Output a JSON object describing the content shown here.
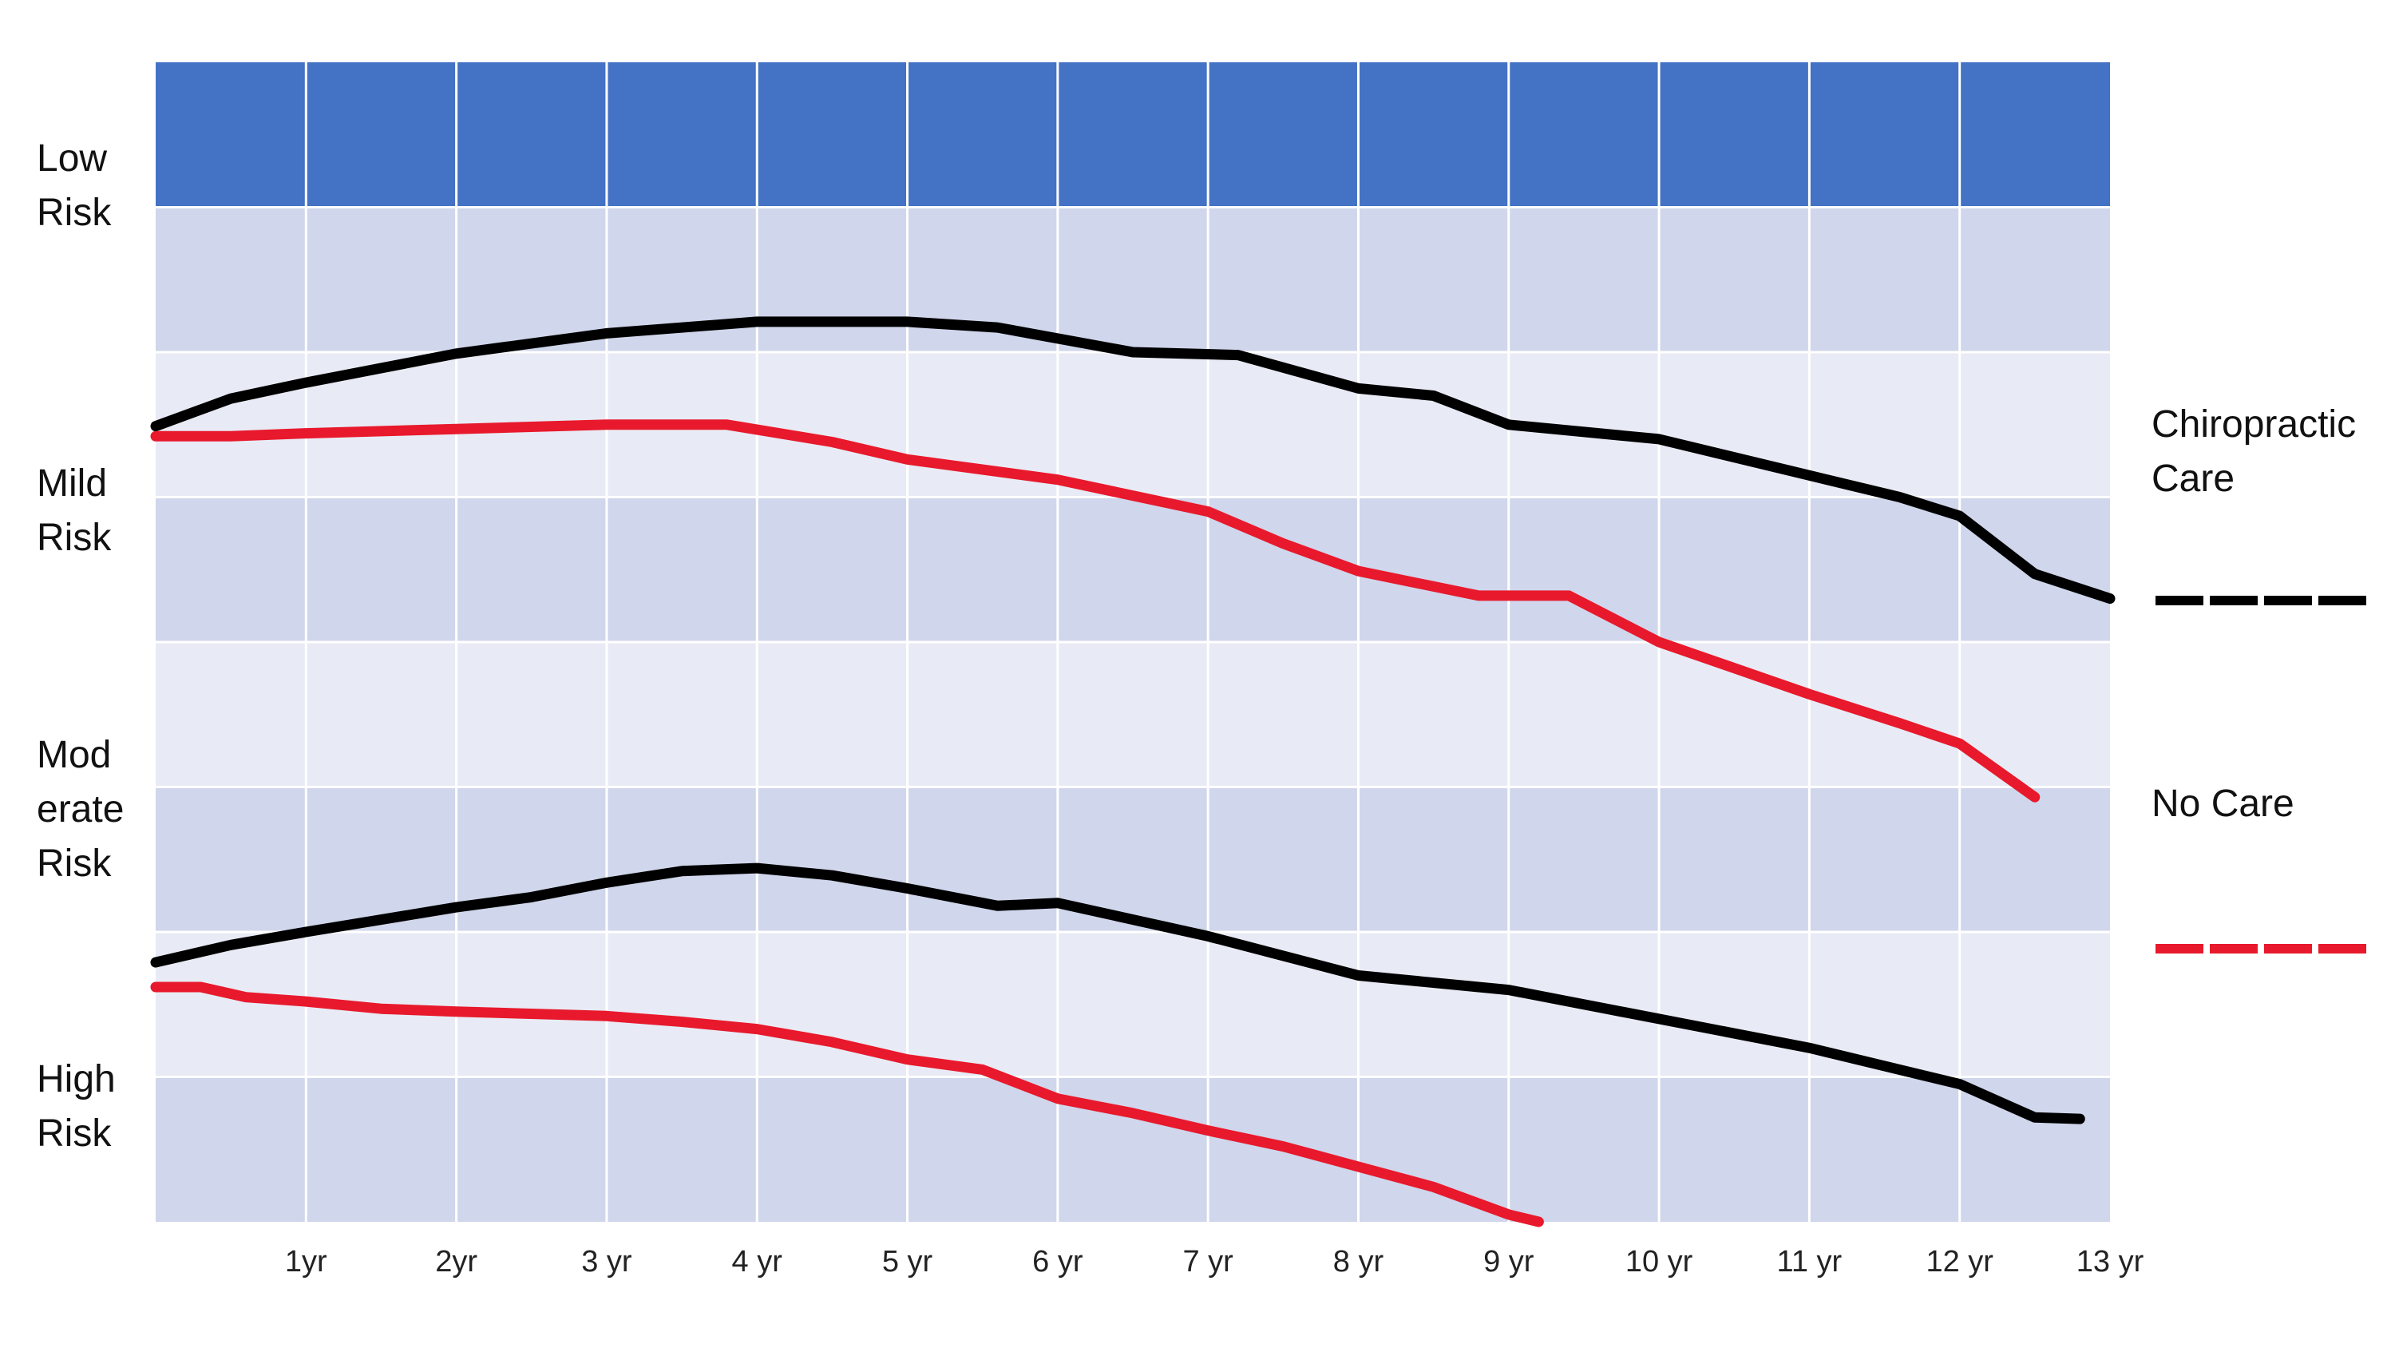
{
  "chart_data": {
    "type": "line",
    "x_ticks": [
      "1yr",
      "2yr",
      "3 yr",
      "4 yr",
      "5 yr",
      "6 yr",
      "7 yr",
      "8 yr",
      "9 yr",
      "10 yr",
      "11 yr",
      "12 yr",
      "13 yr"
    ],
    "xlim": [
      0,
      13
    ],
    "ylim": [
      0,
      8
    ],
    "grid": true,
    "y_categories": [
      {
        "label": "Low\nRisk",
        "bands": [
          7,
          8
        ]
      },
      {
        "label": "Mild\nRisk",
        "bands": [
          4,
          7
        ]
      },
      {
        "label": "Mod\nerate\nRisk",
        "bands": [
          2,
          4
        ]
      },
      {
        "label": "High\nRisk",
        "bands": [
          0,
          2
        ]
      }
    ],
    "band_colors": [
      "#d0d6eb",
      "#e8ebf5",
      "#d0d6eb",
      "#e8ebf5",
      "#d0d6eb",
      "#e8ebf5",
      "#d0d6eb",
      "#4472c4"
    ],
    "legend": [
      {
        "name": "Chiropractic\nCare",
        "color": "#000000"
      },
      {
        "name": "No Care",
        "color": "#e8192c"
      }
    ],
    "series": [
      {
        "legend_index": 0,
        "color": "#000000",
        "points": [
          [
            0,
            5.49
          ],
          [
            0.5,
            5.68
          ],
          [
            1,
            5.79
          ],
          [
            2,
            5.99
          ],
          [
            3,
            6.13
          ],
          [
            4,
            6.21
          ],
          [
            5,
            6.21
          ],
          [
            5.6,
            6.17
          ],
          [
            6.5,
            6.0
          ],
          [
            7.2,
            5.98
          ],
          [
            8,
            5.75
          ],
          [
            8.5,
            5.7
          ],
          [
            9,
            5.5
          ],
          [
            10,
            5.4
          ],
          [
            11,
            5.15
          ],
          [
            11.6,
            5.0
          ],
          [
            12,
            4.87
          ],
          [
            12.5,
            4.47
          ],
          [
            13,
            4.3
          ]
        ]
      },
      {
        "legend_index": 1,
        "color": "#e8192c",
        "points": [
          [
            0,
            5.42
          ],
          [
            0.5,
            5.42
          ],
          [
            1,
            5.44
          ],
          [
            2,
            5.47
          ],
          [
            3,
            5.5
          ],
          [
            3.8,
            5.5
          ],
          [
            4.5,
            5.38
          ],
          [
            5,
            5.26
          ],
          [
            6,
            5.12
          ],
          [
            7,
            4.9
          ],
          [
            7.5,
            4.68
          ],
          [
            8,
            4.49
          ],
          [
            8.8,
            4.32
          ],
          [
            9.4,
            4.32
          ],
          [
            10,
            4.0
          ],
          [
            11,
            3.64
          ],
          [
            11.6,
            3.44
          ],
          [
            12,
            3.3
          ],
          [
            12.5,
            2.93
          ]
        ]
      },
      {
        "legend_index": 0,
        "color": "#000000",
        "points": [
          [
            0,
            1.79
          ],
          [
            0.5,
            1.91
          ],
          [
            1,
            2.0
          ],
          [
            2,
            2.17
          ],
          [
            2.5,
            2.24
          ],
          [
            3,
            2.34
          ],
          [
            3.5,
            2.42
          ],
          [
            4,
            2.44
          ],
          [
            4.5,
            2.39
          ],
          [
            5,
            2.3
          ],
          [
            5.6,
            2.18
          ],
          [
            6,
            2.2
          ],
          [
            7,
            1.97
          ],
          [
            8,
            1.7
          ],
          [
            9,
            1.6
          ],
          [
            10,
            1.4
          ],
          [
            11,
            1.2
          ],
          [
            12,
            0.95
          ],
          [
            12.5,
            0.72
          ],
          [
            12.8,
            0.71
          ]
        ]
      },
      {
        "legend_index": 1,
        "color": "#e8192c",
        "points": [
          [
            0,
            1.62
          ],
          [
            0.3,
            1.62
          ],
          [
            0.6,
            1.55
          ],
          [
            1,
            1.52
          ],
          [
            1.5,
            1.47
          ],
          [
            2,
            1.45
          ],
          [
            3,
            1.42
          ],
          [
            3.5,
            1.38
          ],
          [
            4,
            1.33
          ],
          [
            4.5,
            1.24
          ],
          [
            5,
            1.12
          ],
          [
            5.5,
            1.05
          ],
          [
            6,
            0.85
          ],
          [
            6.5,
            0.75
          ],
          [
            7,
            0.63
          ],
          [
            7.5,
            0.52
          ],
          [
            8,
            0.38
          ],
          [
            8.5,
            0.24
          ],
          [
            9,
            0.05
          ],
          [
            9.2,
            0.0
          ]
        ]
      }
    ]
  }
}
